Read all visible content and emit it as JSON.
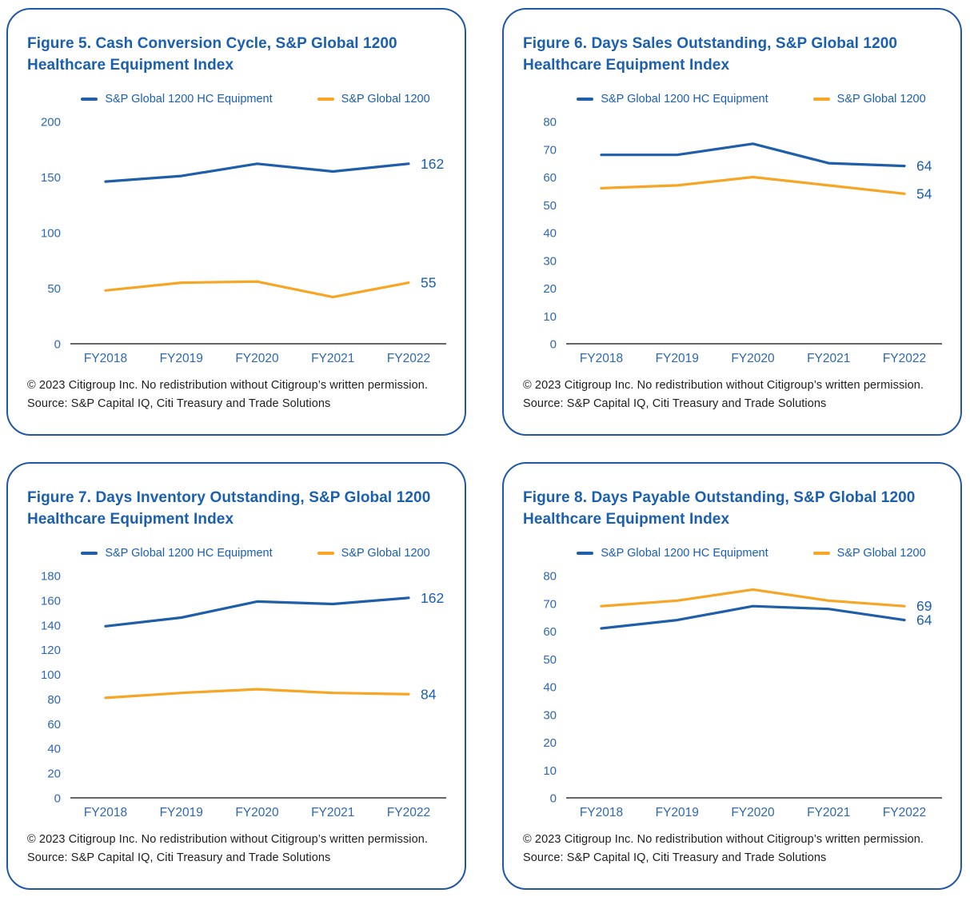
{
  "colors": {
    "hc_equipment_line": "#1f5ea9",
    "sp1200_line": "#f6a524",
    "title_text": "#1a5fb0",
    "axis_tick_text": "#2e68b1",
    "end_label_text": "#1a5fb0",
    "axis_line": "#333333",
    "card_border": "#2057a7",
    "footer_text": "#1d1d1d"
  },
  "legend": {
    "series1_label": "S&P Global 1200 HC Equipment",
    "series2_label": "S&P Global 1200"
  },
  "footer": {
    "line1": "© 2023 Citigroup Inc. No redistribution without Citigroup’s written permission.",
    "line2": "Source: S&P Capital IQ, Citi Treasury and Trade Solutions"
  },
  "chart_data": [
    {
      "type": "line",
      "title": "Figure 5. Cash Conversion Cycle, S&P Global 1200 Healthcare Equipment Index",
      "categories": [
        "FY2018",
        "FY2019",
        "FY2020",
        "FY2021",
        "FY2022"
      ],
      "ylim": [
        0,
        200
      ],
      "yticks": [
        0,
        50,
        100,
        150,
        200
      ],
      "grid": false,
      "legend_position": "top",
      "series": [
        {
          "name": "S&P Global 1200 HC Equipment",
          "color_key": "hc_equipment_line",
          "values": [
            146,
            151,
            162,
            155,
            162
          ],
          "end_label": "162"
        },
        {
          "name": "S&P Global 1200",
          "color_key": "sp1200_line",
          "values": [
            48,
            55,
            56,
            42,
            55
          ],
          "end_label": "55"
        }
      ]
    },
    {
      "type": "line",
      "title": "Figure 6. Days Sales Outstanding, S&P Global 1200 Healthcare Equipment Index",
      "categories": [
        "FY2018",
        "FY2019",
        "FY2020",
        "FY2021",
        "FY2022"
      ],
      "ylim": [
        0,
        80
      ],
      "yticks": [
        0,
        10,
        20,
        30,
        40,
        50,
        60,
        70,
        80
      ],
      "grid": false,
      "legend_position": "top",
      "series": [
        {
          "name": "S&P Global 1200 HC Equipment",
          "color_key": "hc_equipment_line",
          "values": [
            68,
            68,
            72,
            65,
            64
          ],
          "end_label": "64"
        },
        {
          "name": "S&P Global 1200",
          "color_key": "sp1200_line",
          "values": [
            56,
            57,
            60,
            57,
            54
          ],
          "end_label": "54"
        }
      ]
    },
    {
      "type": "line",
      "title": "Figure 7. Days Inventory Outstanding, S&P Global 1200 Healthcare Equipment Index",
      "categories": [
        "FY2018",
        "FY2019",
        "FY2020",
        "FY2021",
        "FY2022"
      ],
      "ylim": [
        0,
        180
      ],
      "yticks": [
        0,
        20,
        40,
        60,
        80,
        100,
        120,
        140,
        160,
        180
      ],
      "grid": false,
      "legend_position": "top",
      "series": [
        {
          "name": "S&P Global 1200 HC Equipment",
          "color_key": "hc_equipment_line",
          "values": [
            139,
            146,
            159,
            157,
            162
          ],
          "end_label": "162"
        },
        {
          "name": "S&P Global 1200",
          "color_key": "sp1200_line",
          "values": [
            81,
            85,
            88,
            85,
            84
          ],
          "end_label": "84"
        }
      ]
    },
    {
      "type": "line",
      "title": "Figure 8. Days Payable Outstanding, S&P Global 1200 Healthcare Equipment Index",
      "categories": [
        "FY2018",
        "FY2019",
        "FY2020",
        "FY2021",
        "FY2022"
      ],
      "ylim": [
        0,
        80
      ],
      "yticks": [
        0,
        10,
        20,
        30,
        40,
        50,
        60,
        70,
        80
      ],
      "grid": false,
      "legend_position": "top",
      "series": [
        {
          "name": "S&P Global 1200 HC Equipment",
          "color_key": "hc_equipment_line",
          "values": [
            61,
            64,
            69,
            68,
            64
          ],
          "end_label": "64"
        },
        {
          "name": "S&P Global 1200",
          "color_key": "sp1200_line",
          "values": [
            69,
            71,
            75,
            71,
            69
          ],
          "end_label": "69"
        }
      ]
    }
  ]
}
